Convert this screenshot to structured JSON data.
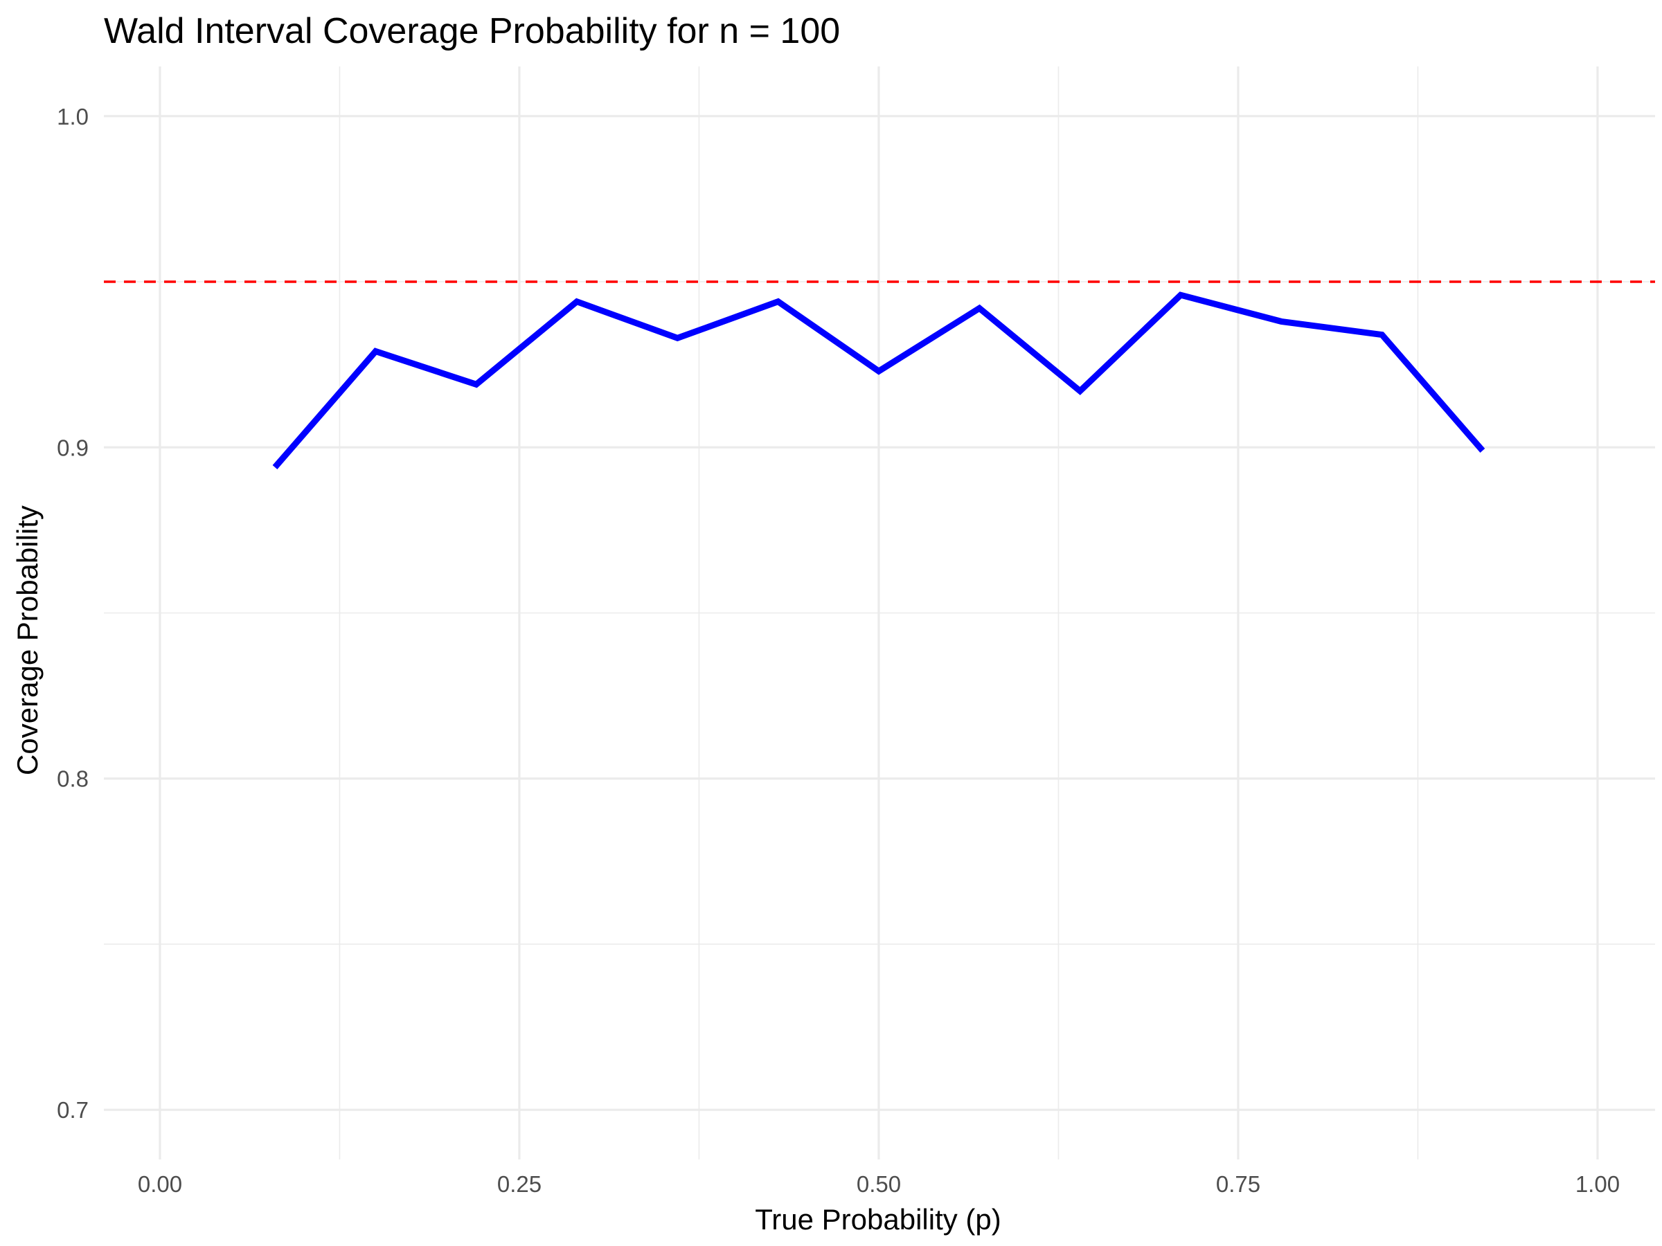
{
  "chart_data": {
    "type": "line",
    "title": "Wald Interval Coverage Probability for n = 100",
    "xlabel": "True Probability (p)",
    "ylabel": "Coverage Probability",
    "xlim": [
      -0.039,
      1.04
    ],
    "ylim": [
      0.685,
      1.015
    ],
    "x_ticks": [
      0.0,
      0.25,
      0.5,
      0.75,
      1.0
    ],
    "x_tick_labels": [
      "0.00",
      "0.25",
      "0.50",
      "0.75",
      "1.00"
    ],
    "y_ticks": [
      0.7,
      0.8,
      0.9,
      1.0
    ],
    "y_tick_labels": [
      "0.7",
      "0.8",
      "0.9",
      "1.0"
    ],
    "grid": true,
    "series": [
      {
        "color": "#0000ff",
        "x": [
          0.08,
          0.15,
          0.22,
          0.29,
          0.36,
          0.43,
          0.5,
          0.57,
          0.64,
          0.71,
          0.78,
          0.85,
          0.92
        ],
        "y": [
          0.894,
          0.929,
          0.919,
          0.944,
          0.933,
          0.944,
          0.923,
          0.942,
          0.917,
          0.946,
          0.938,
          0.934,
          0.899
        ]
      }
    ],
    "reference_line": {
      "y": 0.95,
      "color": "#ff0000",
      "style": "dashed"
    }
  }
}
